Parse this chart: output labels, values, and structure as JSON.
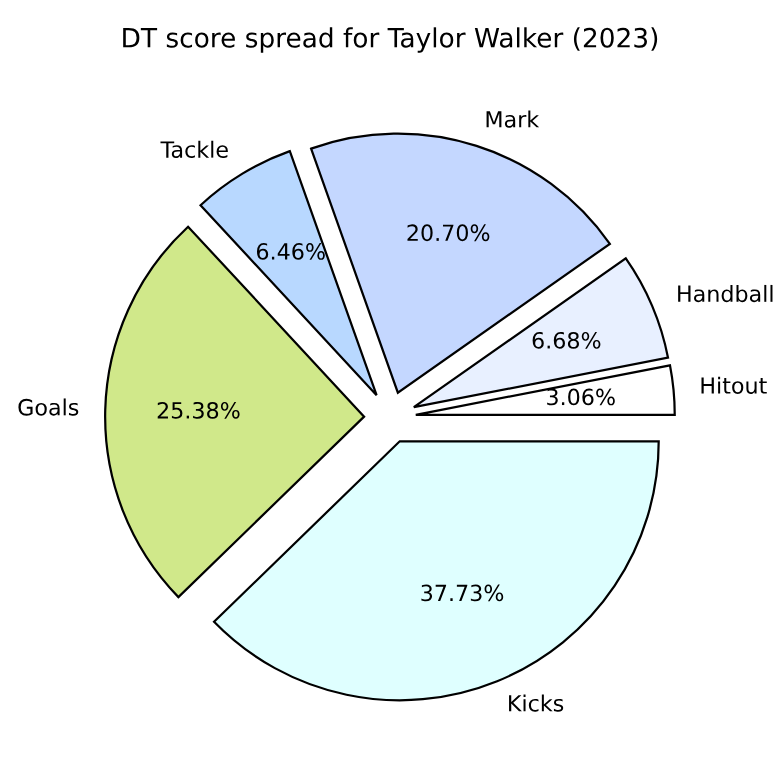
{
  "chart_data": {
    "type": "pie",
    "title": "DT score spread for Taylor Walker (2023)",
    "categories": [
      "Hitout",
      "Handball",
      "Mark",
      "Tackle",
      "Goals",
      "Kicks"
    ],
    "values": [
      3.06,
      6.68,
      20.7,
      6.46,
      25.38,
      37.73
    ],
    "value_labels": [
      "3.06%",
      "6.68%",
      "20.70%",
      "6.46%",
      "25.38%",
      "37.73%"
    ],
    "colors": [
      "#ffffff",
      "#e8f0ff",
      "#c4d7ff",
      "#b8d8ff",
      "#d0e88a",
      "#dfffff"
    ]
  }
}
